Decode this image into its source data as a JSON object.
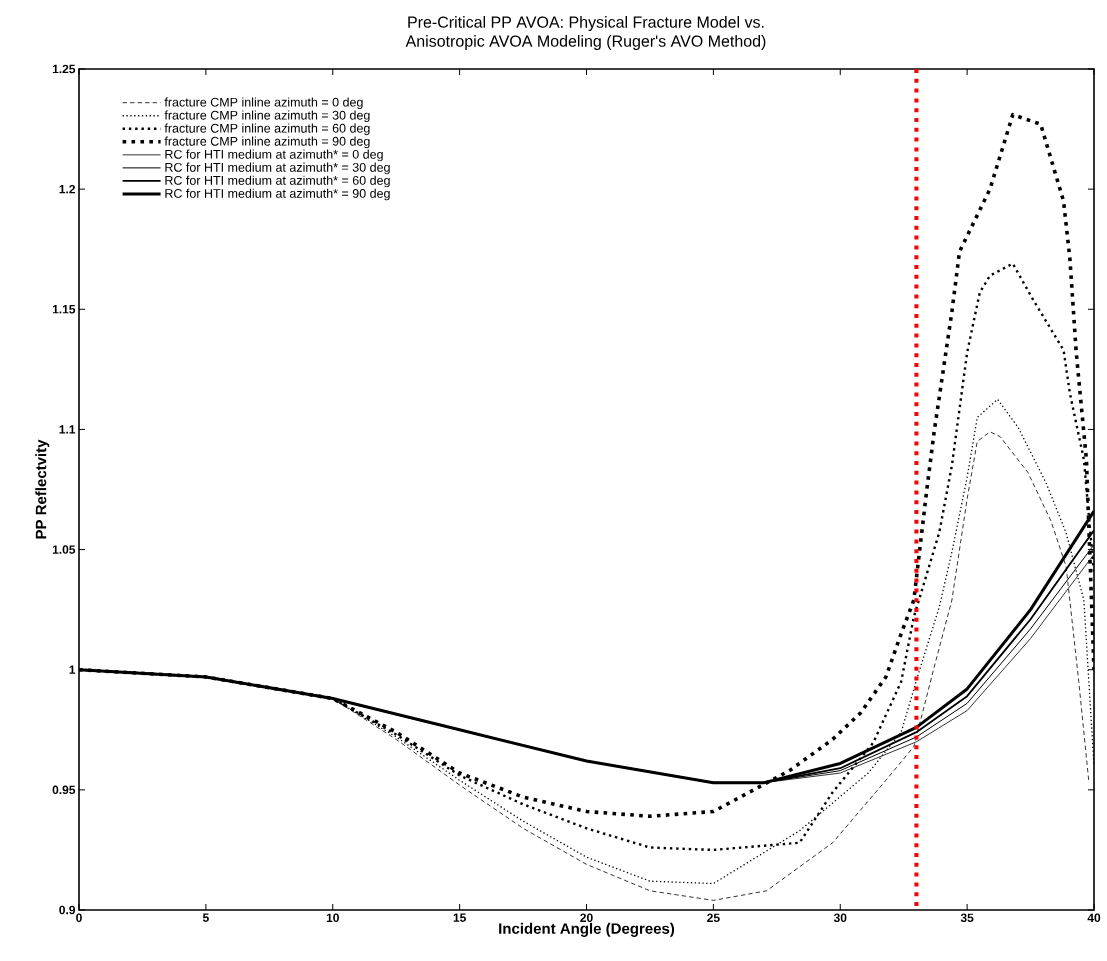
{
  "chart_data": {
    "type": "line",
    "title": "Pre-Critical PP AVOA:  Physical Fracture Model vs.\nAnisotropic AVOA Modeling (Ruger's AVO Method)",
    "xlabel": "Incident Angle (Degrees)",
    "ylabel": "PP Reflectvity",
    "xlim": [
      0,
      40
    ],
    "ylim": [
      0.9,
      1.25
    ],
    "xticks": [
      0,
      5,
      10,
      15,
      20,
      25,
      30,
      35,
      40
    ],
    "yticks": [
      0.9,
      0.95,
      1,
      1.05,
      1.1,
      1.15,
      1.2,
      1.25
    ],
    "grid": false,
    "legend": "top left",
    "ref_lines": [
      {
        "axis": "x",
        "value": 33,
        "color": "#ff0000",
        "line_style": "dotted"
      }
    ],
    "series": [
      {
        "name": "fracture CMP inline azimuth = 0 deg",
        "color": "#000000",
        "line_style": "dashed",
        "x": [
          0,
          5,
          10,
          12.5,
          15,
          17.5,
          20,
          22.5,
          25,
          27.1,
          29.7,
          31.8,
          32.9,
          33.7,
          34.4,
          35,
          35.4,
          35.9,
          36.3,
          37.4,
          38.3,
          38.9,
          39.4,
          39.8
        ],
        "values": [
          1,
          0.997,
          0.988,
          0.971,
          0.952,
          0.934,
          0.919,
          0.908,
          0.904,
          0.908,
          0.928,
          0.954,
          0.968,
          1.001,
          1.029,
          1.071,
          1.095,
          1.099,
          1.097,
          1.082,
          1.062,
          1.043,
          0.995,
          0.953
        ]
      },
      {
        "name": "fracture CMP inline azimuth = 30 deg",
        "color": "#000000",
        "line_style": "dotted",
        "x": [
          0,
          5,
          10,
          12.5,
          15,
          17.5,
          20,
          22.5,
          25,
          28.4,
          31.1,
          32.4,
          33.1,
          33.9,
          34.4,
          35,
          35.4,
          36.2,
          37,
          38.1,
          38.9,
          39.6,
          40
        ],
        "values": [
          1,
          0.997,
          0.988,
          0.972,
          0.954,
          0.937,
          0.922,
          0.912,
          0.911,
          0.933,
          0.957,
          0.974,
          0.999,
          1.026,
          1.049,
          1.08,
          1.105,
          1.1125,
          1.101,
          1.078,
          1.057,
          1.029,
          0.96
        ]
      },
      {
        "name": "fracture CMP inline azimuth = 60 deg",
        "color": "#000000",
        "line_style": "dotted",
        "x": [
          0,
          5,
          10,
          12.5,
          15,
          17.5,
          20,
          22.5,
          25,
          28.4,
          29.7,
          31.3,
          32.4,
          32.9,
          33.9,
          34.4,
          35,
          35.5,
          35.9,
          36.8,
          37.6,
          38.8,
          39.05,
          39.6,
          40
        ],
        "values": [
          1,
          0.997,
          0.988,
          0.973,
          0.956,
          0.944,
          0.934,
          0.926,
          0.925,
          0.928,
          0.949,
          0.9696,
          0.995,
          1.022,
          1.057,
          1.085,
          1.132,
          1.157,
          1.164,
          1.169,
          1.154,
          1.133,
          1.115,
          1.0875,
          1.04
        ]
      },
      {
        "name": "fracture CMP inline azimuth = 90 deg",
        "color": "#000000",
        "line_style": "dotted",
        "x": [
          0,
          5,
          10,
          12.5,
          15,
          17.5,
          20,
          22.5,
          25,
          28,
          29.7,
          30.8,
          31.8,
          32.4,
          32.9,
          33.4,
          33.7,
          34.4,
          34.7,
          35.9,
          36.8,
          37.9,
          38.8,
          39.05,
          39.3,
          39.7,
          40
        ],
        "values": [
          1,
          0.997,
          0.988,
          0.974,
          0.957,
          0.947,
          0.941,
          0.939,
          0.941,
          0.958,
          0.971,
          0.982,
          0.997,
          1.015,
          1.029,
          1.074,
          1.099,
          1.149,
          1.174,
          1.2,
          1.231,
          1.227,
          1.195,
          1.171,
          1.132,
          1.0875,
          1.0
        ]
      },
      {
        "name": "RC for HTI medium at azimuth* = 0 deg",
        "color": "#000000",
        "line_style": "solid",
        "x": [
          0,
          5,
          10,
          15,
          20,
          25,
          27,
          30,
          33,
          35,
          37.5,
          40
        ],
        "values": [
          1,
          0.997,
          0.988,
          0.975,
          0.962,
          0.953,
          0.953,
          0.957,
          0.97,
          0.983,
          1.013,
          1.048
        ]
      },
      {
        "name": "RC for HTI medium at azimuth* = 30 deg",
        "color": "#000000",
        "line_style": "solid",
        "x": [
          0,
          5,
          10,
          15,
          20,
          25,
          27,
          30,
          33,
          35,
          37.5,
          40
        ],
        "values": [
          1,
          0.997,
          0.988,
          0.975,
          0.962,
          0.953,
          0.953,
          0.958,
          0.972,
          0.986,
          1.017,
          1.052
        ]
      },
      {
        "name": "RC for HTI medium at azimuth* = 60 deg",
        "color": "#000000",
        "line_style": "solid",
        "x": [
          0,
          5,
          10,
          15,
          20,
          25,
          27,
          30,
          33,
          35,
          37.5,
          40
        ],
        "values": [
          1,
          0.997,
          0.988,
          0.975,
          0.962,
          0.953,
          0.953,
          0.959,
          0.974,
          0.989,
          1.021,
          1.058
        ]
      },
      {
        "name": "RC for HTI medium at azimuth* = 90 deg",
        "color": "#000000",
        "line_style": "solid",
        "x": [
          0,
          5,
          10,
          15,
          20,
          25,
          27,
          30,
          33,
          35,
          37.5,
          40
        ],
        "values": [
          1,
          0.997,
          0.988,
          0.975,
          0.962,
          0.953,
          0.953,
          0.961,
          0.976,
          0.992,
          1.025,
          1.066
        ]
      }
    ]
  }
}
